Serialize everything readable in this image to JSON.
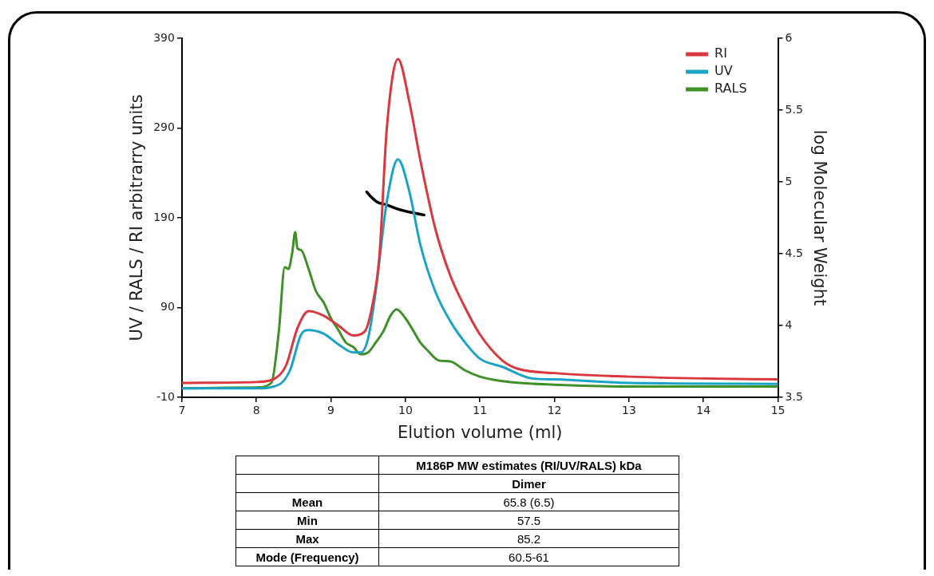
{
  "chart_data": {
    "type": "line",
    "xlabel": "Elution volume (ml)",
    "ylabel": "UV / RALS / RI arbitrarry units",
    "y2label": "log Molecular Weight",
    "xlim": [
      7,
      15
    ],
    "xticks": [
      7,
      8,
      9,
      10,
      11,
      12,
      13,
      14,
      15
    ],
    "ylim": [
      -10,
      390
    ],
    "yticks": [
      -10,
      90,
      190,
      290,
      390
    ],
    "y2lim": [
      3.5,
      6
    ],
    "y2ticks": [
      3.5,
      4,
      4.5,
      5,
      5.5,
      6
    ],
    "grid": false,
    "legend": "top right",
    "marker": "none",
    "line_style": "solid",
    "series": [
      {
        "name": "RI",
        "color": "#d9383f",
        "x": [
          7,
          8,
          8.25,
          8.4,
          8.55,
          8.7,
          8.9,
          9.1,
          9.3,
          9.45,
          9.55,
          9.65,
          9.75,
          9.9,
          10.05,
          10.2,
          10.4,
          10.6,
          10.8,
          11,
          11.3,
          11.5,
          12,
          13,
          14,
          15
        ],
        "values": [
          6,
          7,
          11,
          26,
          67,
          86,
          81,
          70,
          59,
          63,
          90,
          147,
          290,
          367,
          320,
          254,
          178,
          126,
          90,
          60,
          31,
          22,
          17,
          13,
          11,
          10
        ]
      },
      {
        "name": "UV",
        "color": "#1ba3c6",
        "x": [
          7,
          8,
          8.3,
          8.45,
          8.6,
          8.7,
          8.9,
          9.1,
          9.3,
          9.4,
          9.5,
          9.6,
          9.75,
          9.9,
          10.05,
          10.2,
          10.4,
          10.6,
          10.8,
          11,
          11.3,
          11.7,
          12,
          13,
          15
        ],
        "values": [
          0,
          0,
          4,
          20,
          60,
          65,
          61,
          49,
          40,
          40,
          56,
          108,
          208,
          255,
          220,
          160,
          108,
          75,
          51,
          33,
          24,
          11,
          10,
          6,
          5
        ]
      },
      {
        "name": "RALS",
        "color": "#3f9028",
        "x": [
          7,
          8,
          8.2,
          8.3,
          8.38,
          8.43,
          8.48,
          8.52,
          8.55,
          8.6,
          8.7,
          8.8,
          8.9,
          9,
          9.1,
          9.2,
          9.3,
          9.4,
          9.5,
          9.6,
          9.7,
          9.8,
          9.88,
          10,
          10.1,
          10.2,
          10.3,
          10.45,
          10.6,
          10.8,
          11,
          11.3,
          12,
          13,
          15
        ],
        "values": [
          0,
          1,
          6,
          63,
          135,
          133,
          151,
          174,
          156,
          154,
          133,
          108,
          96,
          78,
          65,
          51,
          46,
          38,
          40,
          51,
          63,
          81,
          88,
          78,
          65,
          51,
          42,
          31,
          30,
          20,
          13,
          8,
          4,
          2,
          2
        ]
      },
      {
        "color": "#000000",
        "axis": "y2",
        "x": [
          9.48,
          9.55,
          9.62,
          9.75,
          9.9,
          10.05,
          10.25
        ],
        "values": [
          4.93,
          4.89,
          4.86,
          4.84,
          4.81,
          4.79,
          4.77
        ]
      }
    ],
    "annotations": [
      "M186P MW estimates (RI/UV/RALS) kDa",
      "Dimer",
      "Mean",
      "65.8 (6.5)",
      "Min",
      "57.5",
      "Max",
      "85.2",
      "Mode (Frequency)",
      "60.5-61"
    ]
  }
}
